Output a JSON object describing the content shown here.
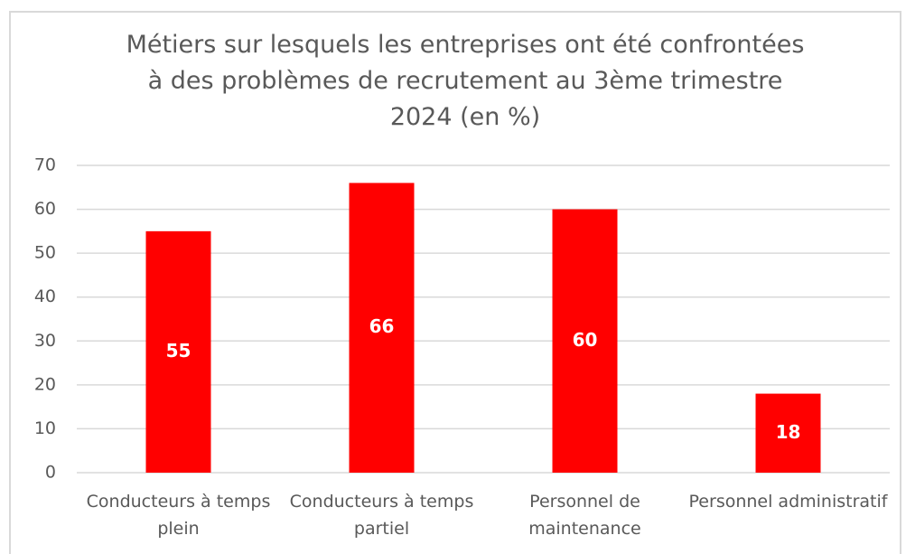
{
  "chart_data": {
    "type": "bar",
    "title": "Métiers sur lesquels les entreprises ont été confrontées à des problèmes de recrutement au 3ème trimestre 2024 (en %)",
    "categories": [
      "Conducteurs à temps plein",
      "Conducteurs à temps partiel",
      "Personnel de maintenance",
      "Personnel administratif"
    ],
    "values": [
      55,
      66,
      60,
      18
    ],
    "color": "#ff0000",
    "ylim": [
      0,
      70
    ],
    "yticks": [
      0,
      10,
      20,
      30,
      40,
      50,
      60,
      70
    ],
    "grid": true
  }
}
